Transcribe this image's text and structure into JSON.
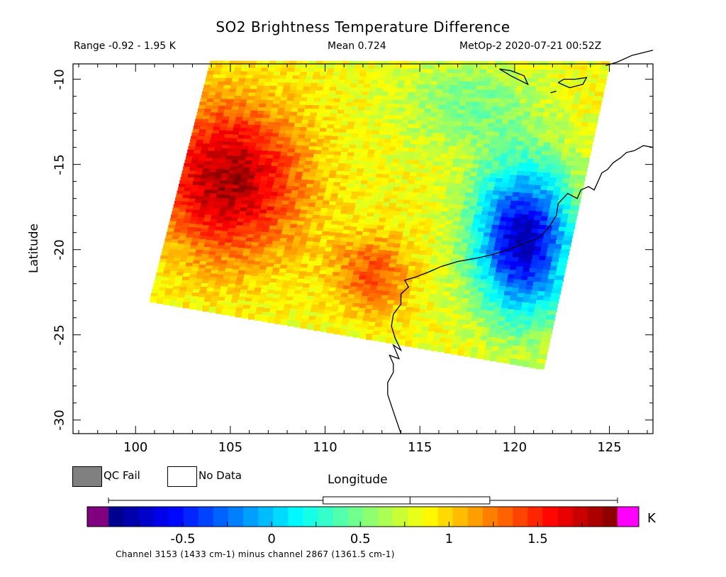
{
  "header": {
    "title": "SO2 Brightness Temperature Difference",
    "range": "Range -0.92 - 1.95 K",
    "mean": "Mean 0.724",
    "info": "MetOp-2 2020-07-21 00:52Z"
  },
  "axes": {
    "xlabel": "Longitude",
    "ylabel": "Latitude",
    "xlim": [
      96.7,
      127.3
    ],
    "ylim": [
      -30.8,
      -9.1
    ],
    "x_ticks": [
      "100",
      "105",
      "110",
      "115",
      "120",
      "125"
    ],
    "y_ticks": [
      "-10",
      "-15",
      "-20",
      "-25",
      "-30"
    ]
  },
  "legend": {
    "qc_fail": "QC Fail",
    "no_data": "No Data",
    "qc_fail_color": "#808080",
    "no_data_color": "#ffffff"
  },
  "colorbar": {
    "min": -0.92,
    "max": 1.95,
    "ticks": [
      "-0.5",
      "0",
      "0.5",
      "1",
      "1.5"
    ],
    "unit": "K",
    "below_color": "#800080",
    "above_color": "#ff00ff",
    "caption": "Channel 3153 (1433 cm-1) minus channel 2867 (1361.5 cm-1)",
    "boxplot": {
      "whisker_low": -0.92,
      "q1": 0.29,
      "median": 0.78,
      "q3": 1.23,
      "whisker_high": 1.95
    }
  },
  "chart_data": {
    "type": "heatmap",
    "title": "SO2 Brightness Temperature Difference",
    "xlabel": "Longitude",
    "ylabel": "Latitude",
    "xlim": [
      96.7,
      127.3
    ],
    "ylim": [
      -30.8,
      -9.1
    ],
    "units": "K",
    "value_range": [
      -0.92,
      1.95
    ],
    "mean": 0.724,
    "swath_corners": [
      [
        104.0,
        -9.0
      ],
      [
        125.0,
        -9.0
      ],
      [
        121.5,
        -27.0
      ],
      [
        100.8,
        -23.0
      ]
    ],
    "anomaly_centers": [
      {
        "lon": 105.0,
        "lat": -16.0,
        "value": 1.85
      },
      {
        "lon": 112.5,
        "lat": -21.5,
        "value": 1.55
      },
      {
        "lon": 120.5,
        "lat": -19.5,
        "value": -0.75
      }
    ],
    "background_value": 0.85
  }
}
